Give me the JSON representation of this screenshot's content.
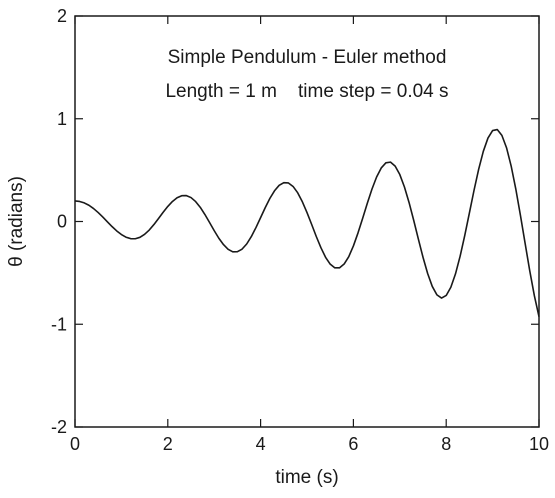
{
  "chart_data": {
    "type": "line",
    "title": "Simple Pendulum - Euler method",
    "subtitle": "Length = 1 m    time step = 0.04 s",
    "xlabel": "time (s)",
    "ylabel": "θ (radians)",
    "xlim": [
      0,
      10
    ],
    "ylim": [
      -2,
      2
    ],
    "x_ticks": [
      0,
      2,
      4,
      6,
      8,
      10
    ],
    "y_ticks": [
      -2,
      -1,
      0,
      1,
      2
    ],
    "grid": false,
    "legend": "none",
    "series": [
      {
        "color": "#1a1a1a",
        "points": [
          [
            0.0,
            0.2
          ],
          [
            0.1,
            0.195
          ],
          [
            0.2,
            0.181
          ],
          [
            0.3,
            0.158
          ],
          [
            0.4,
            0.126
          ],
          [
            0.5,
            0.087
          ],
          [
            0.6,
            0.043
          ],
          [
            0.7,
            -0.004
          ],
          [
            0.8,
            -0.05
          ],
          [
            0.9,
            -0.092
          ],
          [
            1.0,
            -0.127
          ],
          [
            1.1,
            -0.153
          ],
          [
            1.2,
            -0.167
          ],
          [
            1.3,
            -0.168
          ],
          [
            1.4,
            -0.154
          ],
          [
            1.5,
            -0.125
          ],
          [
            1.6,
            -0.083
          ],
          [
            1.7,
            -0.03
          ],
          [
            1.8,
            0.029
          ],
          [
            1.9,
            0.09
          ],
          [
            2.0,
            0.147
          ],
          [
            2.1,
            0.195
          ],
          [
            2.2,
            0.231
          ],
          [
            2.3,
            0.251
          ],
          [
            2.4,
            0.252
          ],
          [
            2.5,
            0.233
          ],
          [
            2.6,
            0.194
          ],
          [
            2.7,
            0.138
          ],
          [
            2.8,
            0.068
          ],
          [
            2.9,
            -0.01
          ],
          [
            3.0,
            -0.089
          ],
          [
            3.1,
            -0.163
          ],
          [
            3.2,
            -0.225
          ],
          [
            3.3,
            -0.271
          ],
          [
            3.4,
            -0.295
          ],
          [
            3.5,
            -0.294
          ],
          [
            3.6,
            -0.269
          ],
          [
            3.7,
            -0.219
          ],
          [
            3.8,
            -0.147
          ],
          [
            3.9,
            -0.059
          ],
          [
            4.0,
            0.038
          ],
          [
            4.1,
            0.135
          ],
          [
            4.2,
            0.225
          ],
          [
            4.3,
            0.299
          ],
          [
            4.4,
            0.352
          ],
          [
            4.5,
            0.378
          ],
          [
            4.6,
            0.375
          ],
          [
            4.7,
            0.341
          ],
          [
            4.8,
            0.279
          ],
          [
            4.9,
            0.192
          ],
          [
            5.0,
            0.087
          ],
          [
            5.1,
            -0.028
          ],
          [
            5.2,
            -0.146
          ],
          [
            5.3,
            -0.255
          ],
          [
            5.4,
            -0.348
          ],
          [
            5.5,
            -0.415
          ],
          [
            5.6,
            -0.451
          ],
          [
            5.7,
            -0.451
          ],
          [
            5.8,
            -0.414
          ],
          [
            5.9,
            -0.342
          ],
          [
            6.0,
            -0.238
          ],
          [
            6.1,
            -0.11
          ],
          [
            6.2,
            0.032
          ],
          [
            6.3,
            0.178
          ],
          [
            6.4,
            0.315
          ],
          [
            6.5,
            0.433
          ],
          [
            6.6,
            0.521
          ],
          [
            6.7,
            0.571
          ],
          [
            6.8,
            0.578
          ],
          [
            6.9,
            0.539
          ],
          [
            7.0,
            0.457
          ],
          [
            7.1,
            0.336
          ],
          [
            7.2,
            0.184
          ],
          [
            7.3,
            0.011
          ],
          [
            7.4,
            -0.171
          ],
          [
            7.5,
            -0.348
          ],
          [
            7.6,
            -0.506
          ],
          [
            7.7,
            -0.632
          ],
          [
            7.8,
            -0.714
          ],
          [
            7.9,
            -0.745
          ],
          [
            8.0,
            -0.72
          ],
          [
            8.1,
            -0.64
          ],
          [
            8.2,
            -0.51
          ],
          [
            8.3,
            -0.338
          ],
          [
            8.4,
            -0.136
          ],
          [
            8.5,
            0.083
          ],
          [
            8.6,
            0.304
          ],
          [
            8.7,
            0.509
          ],
          [
            8.8,
            0.683
          ],
          [
            8.9,
            0.812
          ],
          [
            9.0,
            0.885
          ],
          [
            9.1,
            0.895
          ],
          [
            9.2,
            0.838
          ],
          [
            9.3,
            0.718
          ],
          [
            9.4,
            0.54
          ],
          [
            9.5,
            0.316
          ],
          [
            9.6,
            0.06
          ],
          [
            9.7,
            -0.211
          ],
          [
            9.8,
            -0.478
          ],
          [
            9.9,
            -0.722
          ],
          [
            10.0,
            -0.926
          ]
        ]
      }
    ]
  }
}
